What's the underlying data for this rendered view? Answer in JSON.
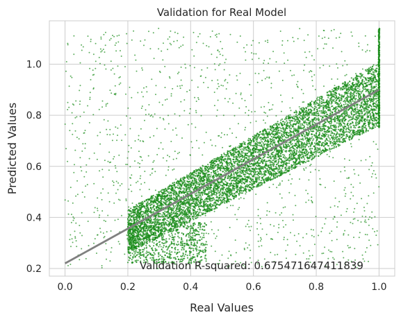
{
  "chart_data": {
    "type": "scatter",
    "title": "Validation for Real Model",
    "xlabel": "Real Values",
    "ylabel": "Predicted Values",
    "xlim": [
      -0.05,
      1.05
    ],
    "ylim": [
      0.17,
      1.17
    ],
    "xticks": [
      "0.0",
      "0.2",
      "0.4",
      "0.6",
      "0.8",
      "1.0"
    ],
    "yticks": [
      "0.2",
      "0.4",
      "0.6",
      "0.8",
      "1.0"
    ],
    "grid": true,
    "point_color": "#1a8c1a",
    "line_color": "#808080",
    "fit_line": {
      "slope": 0.68,
      "intercept": 0.22
    },
    "annotation": "Validation R-squared: 0.675471647411839",
    "band": {
      "x_range": [
        0.2,
        1.0
      ],
      "y_at_x0_2": [
        0.26,
        0.43
      ],
      "y_at_x1_0": [
        0.76,
        1.01
      ]
    },
    "outliers": {
      "x_range": [
        0.0,
        1.0
      ],
      "y_range": [
        0.2,
        1.14
      ]
    }
  }
}
